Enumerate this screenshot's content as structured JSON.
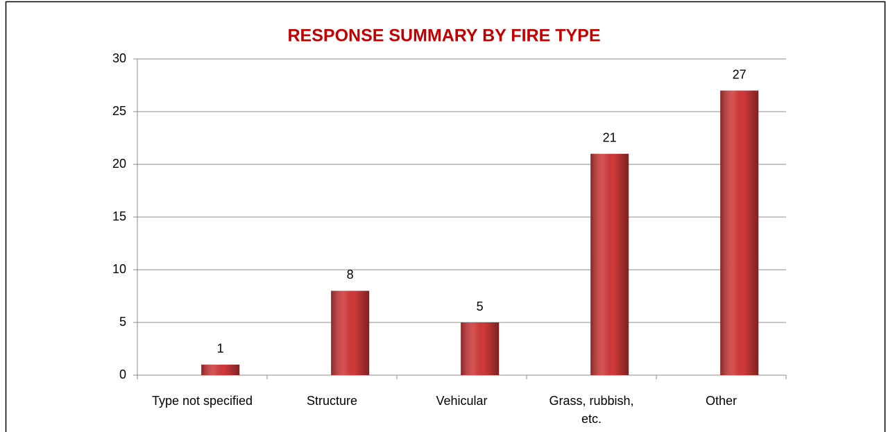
{
  "chart_data": {
    "type": "bar",
    "title": "RESPONSE SUMMARY BY FIRE TYPE",
    "categories": [
      "Type not specified",
      "Structure",
      "Vehicular",
      "Grass, rubbish, etc.",
      "Other"
    ],
    "values": [
      1,
      8,
      5,
      21,
      27
    ],
    "color": "#d0393a",
    "ylim": [
      0,
      30
    ],
    "yticks": [
      0,
      5,
      10,
      15,
      20,
      25,
      30
    ],
    "grid": true
  }
}
